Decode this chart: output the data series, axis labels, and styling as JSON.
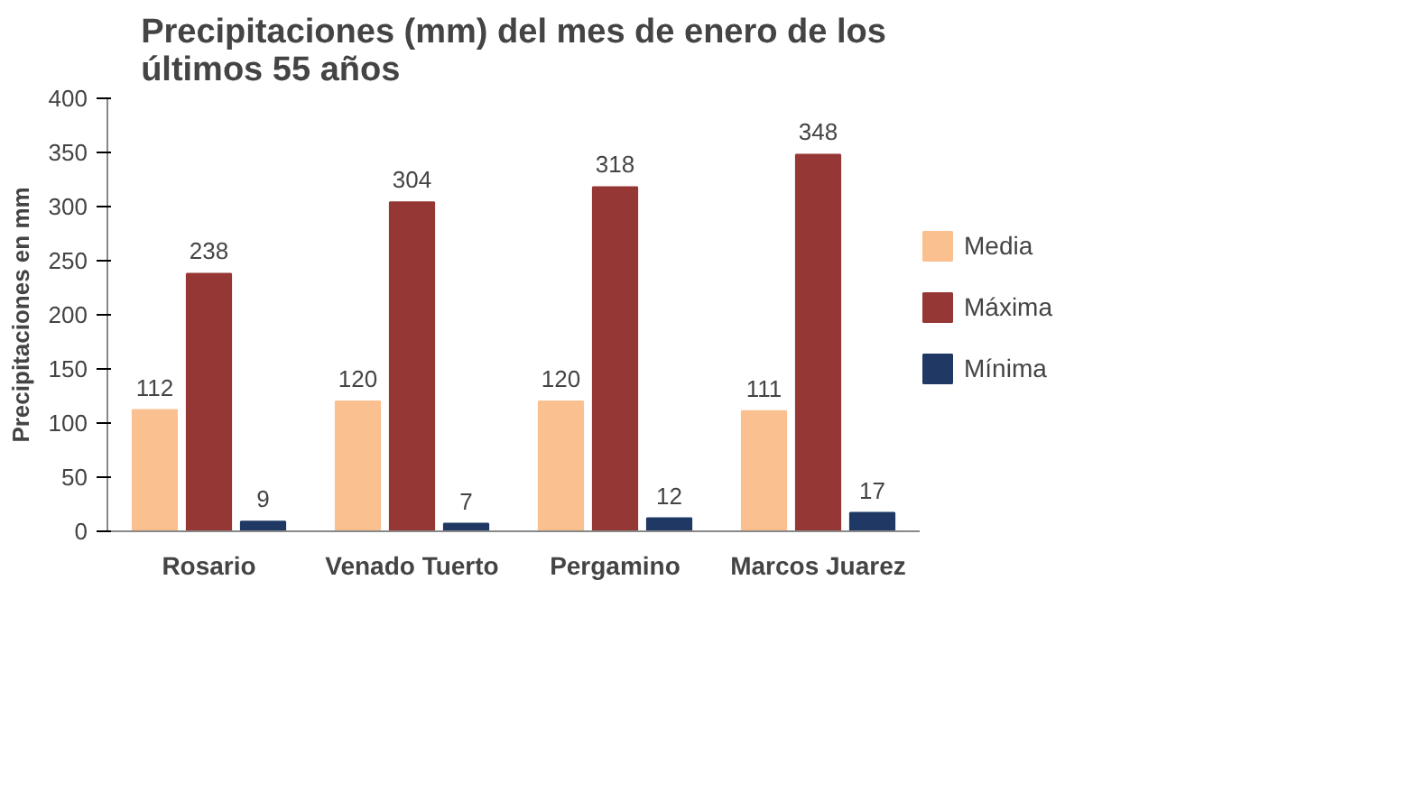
{
  "chart_data": {
    "type": "bar",
    "title": "Precipitaciones (mm) del mes de enero de los últimos 55 años",
    "ylabel": "Precipitaciones en mm",
    "categories": [
      "Rosario",
      "Venado Tuerto",
      "Pergamino",
      "Marcos Juarez"
    ],
    "series": [
      {
        "name": "Media",
        "color": "#fac090",
        "values": [
          112,
          120,
          120,
          111
        ]
      },
      {
        "name": "Máxima",
        "color": "#953735",
        "values": [
          238,
          304,
          318,
          348
        ]
      },
      {
        "name": "Mínima",
        "color": "#1f3864",
        "values": [
          9,
          7,
          12,
          17
        ]
      }
    ],
    "ylim": [
      0,
      400
    ],
    "yticks": [
      0,
      50,
      100,
      150,
      200,
      250,
      300,
      350,
      400
    ],
    "grid": false,
    "legend": "right",
    "data_labels": true
  }
}
